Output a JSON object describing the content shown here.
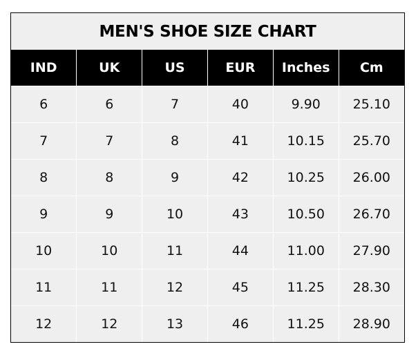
{
  "chart_data": {
    "type": "table",
    "title": "MEN'S SHOE SIZE CHART",
    "columns": [
      "IND",
      "UK",
      "US",
      "EUR",
      "Inches",
      "Cm"
    ],
    "rows": [
      [
        "6",
        "6",
        "7",
        "40",
        "9.90",
        "25.10"
      ],
      [
        "7",
        "7",
        "8",
        "41",
        "10.15",
        "25.70"
      ],
      [
        "8",
        "8",
        "9",
        "42",
        "10.25",
        "26.00"
      ],
      [
        "9",
        "9",
        "10",
        "43",
        "10.50",
        "26.70"
      ],
      [
        "10",
        "10",
        "11",
        "44",
        "11.00",
        "27.90"
      ],
      [
        "11",
        "11",
        "12",
        "45",
        "11.25",
        "28.30"
      ],
      [
        "12",
        "12",
        "13",
        "46",
        "11.25",
        "28.90"
      ]
    ],
    "colors": {
      "header_bg": "#000000",
      "header_text": "#ffffff",
      "body_bg": "#efefef"
    }
  }
}
